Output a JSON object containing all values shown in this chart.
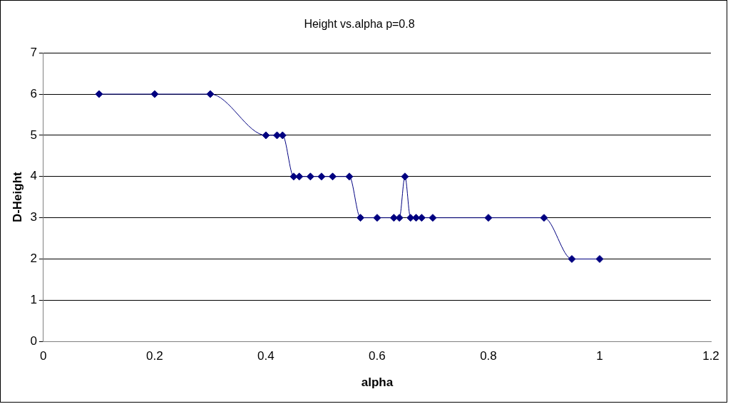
{
  "chart_data": {
    "type": "line",
    "title": "Height vs.alpha p=0.8",
    "xlabel": "alpha",
    "ylabel": "D-Height",
    "x": [
      0.1,
      0.2,
      0.3,
      0.4,
      0.42,
      0.43,
      0.45,
      0.46,
      0.48,
      0.5,
      0.52,
      0.55,
      0.57,
      0.6,
      0.63,
      0.64,
      0.65,
      0.66,
      0.67,
      0.68,
      0.7,
      0.8,
      0.9,
      0.95,
      1.0
    ],
    "series": [
      {
        "color": "#000080",
        "values": [
          6,
          6,
          6,
          5,
          5,
          5,
          4,
          4,
          4,
          4,
          4,
          4,
          3,
          3,
          3,
          3,
          4,
          3,
          3,
          3,
          3,
          3,
          3,
          2,
          2
        ]
      }
    ],
    "xlim": [
      0,
      1.2
    ],
    "xticks": [
      0,
      0.2,
      0.4,
      0.6,
      0.8,
      1,
      1.2
    ],
    "ylim": [
      0,
      7
    ],
    "yticks": [
      0,
      1,
      2,
      3,
      4,
      5,
      6,
      7
    ],
    "grid": "y",
    "marker": "diamond",
    "line_style": "solid",
    "legend": false
  }
}
